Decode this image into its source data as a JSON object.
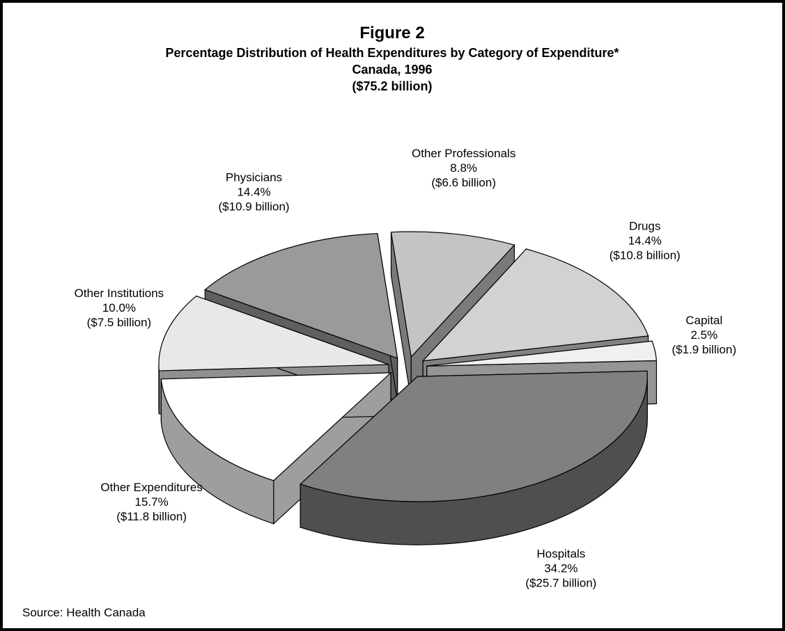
{
  "chart_data": {
    "type": "pie",
    "title": "Figure 2",
    "subtitle": [
      "Percentage Distribution of Health Expenditures by Category of Expenditure*",
      "Canada, 1996",
      "($75.2 billion)"
    ],
    "categories": [
      "Other Professionals",
      "Drugs",
      "Capital",
      "Hospitals",
      "Other Expenditures",
      "Other Institutions",
      "Physicians"
    ],
    "values": [
      8.8,
      14.4,
      2.5,
      34.2,
      15.7,
      10.0,
      14.4
    ],
    "value_labels": [
      "8.8%",
      "14.4%",
      "2.5%",
      "34.2%",
      "15.7%",
      "10.0%",
      "14.4%"
    ],
    "amount_labels": [
      "($6.6 billion)",
      "($10.8 billion)",
      "($1.9 billion)",
      "($25.7 billion)",
      "($11.8 billion)",
      "($7.5 billion)",
      "($10.9 billion)"
    ],
    "colors": [
      "#c4c4c4",
      "#d2d2d2",
      "#f0f0f0",
      "#808080",
      "#ffffff",
      "#e8e8e8",
      "#9a9a9a"
    ],
    "source": "Source: Health Canada"
  }
}
